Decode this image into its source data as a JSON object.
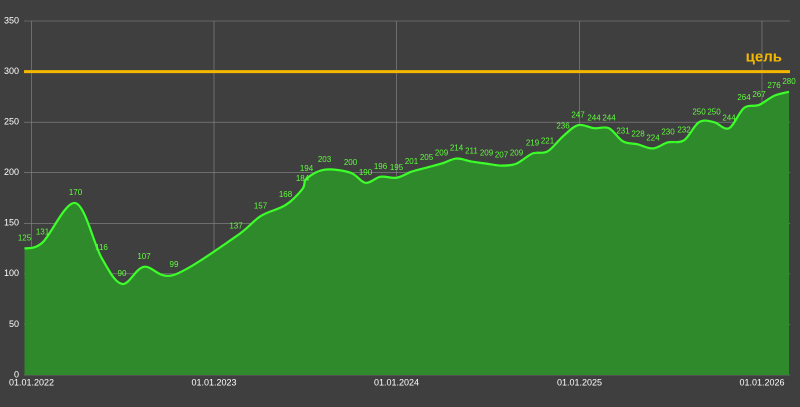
{
  "chart_data": {
    "type": "area",
    "x": [
      "2021-12-18",
      "2022-01-23",
      "2022-03-30",
      "2022-05-21",
      "2022-07-01",
      "2022-08-14",
      "2022-10-13",
      "2023-02-14",
      "2023-04-04",
      "2023-05-24",
      "2023-06-27",
      "2023-07-05",
      "2023-08-10",
      "2023-10-01",
      "2023-10-31",
      "2023-11-30",
      "2024-01-01",
      "2024-01-31",
      "2024-03-01",
      "2024-03-31",
      "2024-04-30",
      "2024-05-30",
      "2024-06-29",
      "2024-07-29",
      "2024-08-28",
      "2024-09-29",
      "2024-10-29",
      "2024-11-29",
      "2024-12-29",
      "2025-01-30",
      "2025-03-01",
      "2025-03-29",
      "2025-04-28",
      "2025-05-28",
      "2025-06-27",
      "2025-07-29",
      "2025-08-28",
      "2025-09-27",
      "2025-10-27",
      "2025-11-26",
      "2025-12-26",
      "2026-01-25",
      "2026-02-24"
    ],
    "values": [
      125,
      131,
      170,
      116,
      90,
      107,
      99,
      137,
      157,
      168,
      184,
      194,
      203,
      200,
      190,
      196,
      195,
      201,
      205,
      209,
      214,
      211,
      209,
      207,
      209,
      219,
      221,
      236,
      247,
      244,
      244,
      231,
      228,
      224,
      230,
      232,
      250,
      250,
      244,
      264,
      267,
      276,
      280
    ],
    "color": "#3cff2a",
    "fill": "#2f8a2c",
    "xlim": [
      "2021-12-17",
      "2026-02-26"
    ],
    "xticks": [
      {
        "value": "2022-01-01",
        "label": "01.01.2022"
      },
      {
        "value": "2023-01-01",
        "label": "01.01.2023"
      },
      {
        "value": "2024-01-01",
        "label": "01.01.2024"
      },
      {
        "value": "2025-01-01",
        "label": "01.01.2025"
      },
      {
        "value": "2026-01-01",
        "label": "01.01.2026"
      }
    ],
    "ylim": [
      0,
      350
    ],
    "yticks": [
      0,
      50,
      100,
      150,
      200,
      250,
      300,
      350
    ],
    "grid": true,
    "target": {
      "value": 300,
      "label": "цель",
      "color": "#f5b800"
    }
  }
}
